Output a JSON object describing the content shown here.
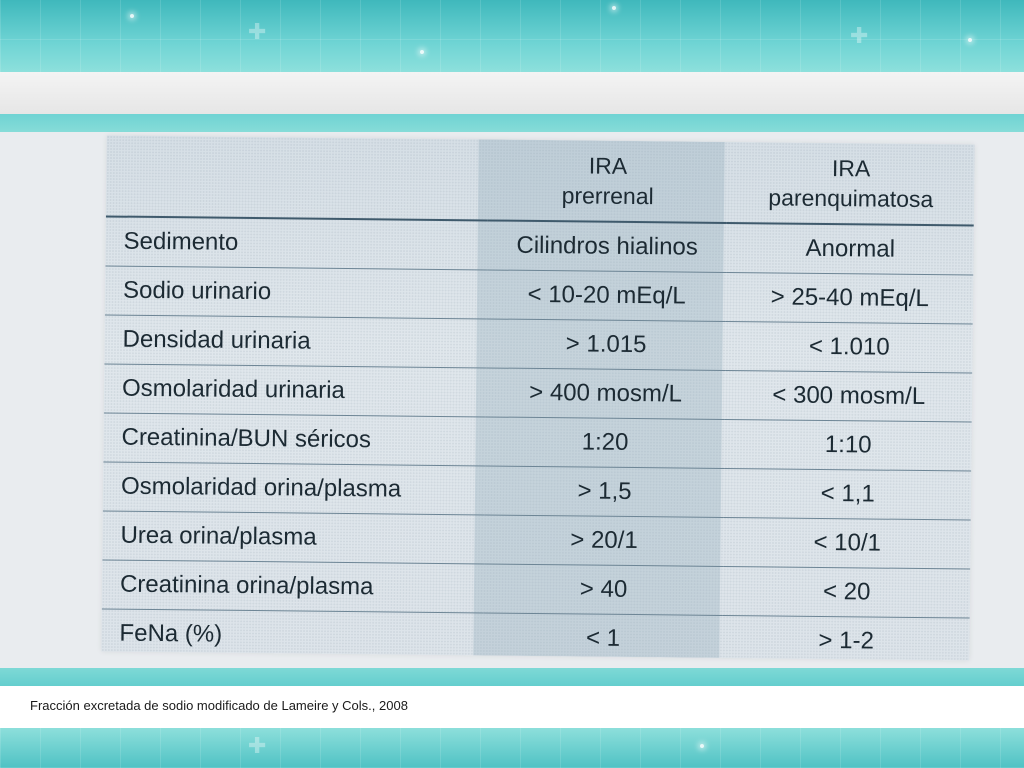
{
  "table": {
    "headers": [
      "",
      [
        "IRA",
        "prerrenal"
      ],
      [
        "IRA",
        "parenquimatosa"
      ]
    ],
    "rows": [
      {
        "label": "Sedimento",
        "prerrenal": "Cilindros hialinos",
        "parenquimatosa": "Anormal"
      },
      {
        "label": "Sodio urinario",
        "prerrenal": "< 10-20 mEq/L",
        "parenquimatosa": "> 25-40 mEq/L"
      },
      {
        "label": "Densidad urinaria",
        "prerrenal": "> 1.015",
        "parenquimatosa": "< 1.010"
      },
      {
        "label": "Osmolaridad urinaria",
        "prerrenal": "> 400 mosm/L",
        "parenquimatosa": "< 300 mosm/L"
      },
      {
        "label": "Creatinina/BUN séricos",
        "prerrenal": "1:20",
        "parenquimatosa": "1:10"
      },
      {
        "label": "Osmolaridad orina/plasma",
        "prerrenal": "> 1,5",
        "parenquimatosa": "< 1,1"
      },
      {
        "label": "Urea orina/plasma",
        "prerrenal": "> 20/1",
        "parenquimatosa": "< 10/1"
      },
      {
        "label": "Creatinina orina/plasma",
        "prerrenal": "> 40",
        "parenquimatosa": "< 20"
      },
      {
        "label": "FeNa (%)",
        "prerrenal": "< 1",
        "parenquimatosa": "> 1-2"
      }
    ]
  },
  "caption": "Fracción excretada de sodio modificado de Lameire y Cols., 2008",
  "colors": {
    "teal": "#5fcfcf",
    "text": "#1c2a33",
    "shade": "#96afbe"
  }
}
